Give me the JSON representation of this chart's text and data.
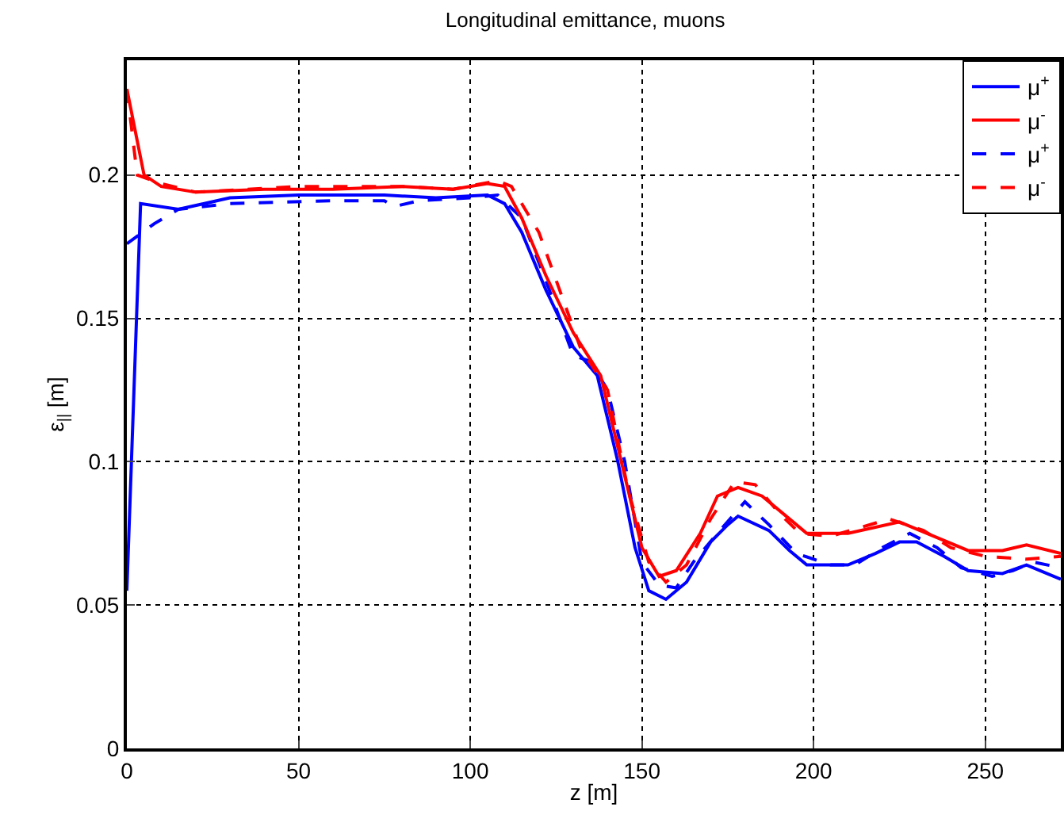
{
  "chart_data": {
    "type": "line",
    "title": "Longitudinal emittance, muons",
    "xlabel": "z [m]",
    "ylabel": "ε$_{||}$ [m]",
    "xlim": [
      0,
      272
    ],
    "xticks": [
      0,
      50,
      100,
      150,
      200,
      250
    ],
    "ylim": [
      0,
      0.24
    ],
    "yticks": [
      0,
      0.05,
      0.1,
      0.15,
      0.2
    ],
    "grid": true,
    "legend": "top right",
    "marker": "none",
    "series": [
      {
        "name": "μ$^{+}$",
        "color": "#0000ff",
        "line_style": "dashed",
        "x": [
          0,
          8,
          15,
          30,
          60,
          75,
          78,
          85,
          100,
          108,
          115,
          123,
          130,
          135,
          140,
          145,
          150,
          155,
          160,
          165,
          172,
          180,
          187,
          195,
          205,
          212,
          220,
          228,
          236,
          243,
          252,
          258,
          264,
          272
        ],
        "values": [
          0.176,
          0.183,
          0.188,
          0.19,
          0.191,
          0.191,
          0.189,
          0.191,
          0.192,
          0.193,
          0.185,
          0.16,
          0.137,
          0.135,
          0.125,
          0.1,
          0.065,
          0.057,
          0.056,
          0.065,
          0.075,
          0.086,
          0.078,
          0.068,
          0.064,
          0.064,
          0.07,
          0.075,
          0.07,
          0.063,
          0.06,
          0.062,
          0.065,
          0.063
        ]
      },
      {
        "name": "μ$^{-}$",
        "color": "#ff0000",
        "line_style": "solid",
        "x": [
          0,
          5,
          10,
          20,
          40,
          60,
          80,
          95,
          105,
          110,
          115,
          122,
          130,
          138,
          144,
          150,
          155,
          160,
          167,
          172,
          178,
          185,
          193,
          198,
          210,
          225,
          235,
          245,
          255,
          262,
          272
        ],
        "values": [
          0.23,
          0.2,
          0.196,
          0.194,
          0.195,
          0.195,
          0.196,
          0.195,
          0.197,
          0.196,
          0.185,
          0.165,
          0.145,
          0.13,
          0.1,
          0.07,
          0.06,
          0.062,
          0.075,
          0.088,
          0.091,
          0.088,
          0.08,
          0.075,
          0.075,
          0.079,
          0.074,
          0.069,
          0.069,
          0.071,
          0.068
        ]
      },
      {
        "name": "μ$^{+}$",
        "color": "#0000ff",
        "line_style": "solid",
        "x": [
          0,
          4,
          15,
          30,
          50,
          75,
          90,
          105,
          110,
          115,
          122,
          130,
          137,
          143,
          148,
          152,
          157,
          163,
          170,
          175,
          178,
          187,
          193,
          198,
          210,
          218,
          225,
          230,
          238,
          245,
          255,
          262,
          272
        ],
        "values": [
          0.055,
          0.19,
          0.188,
          0.192,
          0.193,
          0.193,
          0.192,
          0.193,
          0.19,
          0.18,
          0.16,
          0.14,
          0.13,
          0.1,
          0.07,
          0.055,
          0.052,
          0.058,
          0.072,
          0.078,
          0.081,
          0.076,
          0.069,
          0.064,
          0.064,
          0.068,
          0.072,
          0.072,
          0.067,
          0.062,
          0.061,
          0.064,
          0.059
        ]
      },
      {
        "name": "μ$^{-}$",
        "color": "#ff0000",
        "line_style": "dashed",
        "x": [
          0,
          3,
          10,
          20,
          50,
          80,
          95,
          108,
          112,
          120,
          126,
          132,
          140,
          146,
          152,
          157,
          163,
          170,
          177,
          183,
          190,
          196,
          205,
          222,
          232,
          240,
          250,
          262,
          272
        ],
        "values": [
          0.23,
          0.2,
          0.197,
          0.194,
          0.196,
          0.196,
          0.195,
          0.198,
          0.196,
          0.18,
          0.16,
          0.14,
          0.125,
          0.09,
          0.065,
          0.058,
          0.064,
          0.08,
          0.093,
          0.092,
          0.082,
          0.075,
          0.074,
          0.08,
          0.076,
          0.07,
          0.067,
          0.066,
          0.067
        ]
      }
    ]
  }
}
